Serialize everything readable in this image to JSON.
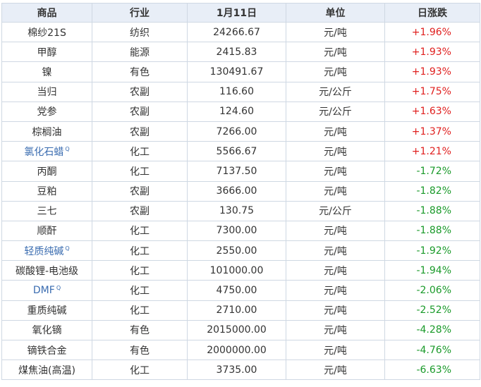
{
  "table": {
    "header": [
      "商品",
      "行业",
      "1月11日",
      "单位",
      "日涨跌"
    ],
    "rows": [
      {
        "name": "棉纱21S",
        "sector": "纺织",
        "price": "24266.67",
        "unit": "元/吨",
        "change": "+1.96%"
      },
      {
        "name": "甲醇",
        "sector": "能源",
        "price": "2415.83",
        "unit": "元/吨",
        "change": "+1.93%"
      },
      {
        "name": "镍",
        "sector": "有色",
        "price": "130491.67",
        "unit": "元/吨",
        "change": "+1.93%"
      },
      {
        "name": "当归",
        "sector": "农副",
        "price": "116.60",
        "unit": "元/公斤",
        "change": "+1.75%"
      },
      {
        "name": "党参",
        "sector": "农副",
        "price": "124.60",
        "unit": "元/公斤",
        "change": "+1.63%"
      },
      {
        "name": "棕榈油",
        "sector": "农副",
        "price": "7266.00",
        "unit": "元/吨",
        "change": "+1.37%"
      },
      {
        "name": "氯化石蜡",
        "sector": "化工",
        "price": "5566.67",
        "unit": "元/吨",
        "change": "+1.21%",
        "link": true
      },
      {
        "name": "丙酮",
        "sector": "化工",
        "price": "7137.50",
        "unit": "元/吨",
        "change": "-1.72%"
      },
      {
        "name": "豆粕",
        "sector": "农副",
        "price": "3666.00",
        "unit": "元/吨",
        "change": "-1.82%"
      },
      {
        "name": "三七",
        "sector": "农副",
        "price": "130.75",
        "unit": "元/公斤",
        "change": "-1.88%"
      },
      {
        "name": "顺酐",
        "sector": "化工",
        "price": "7300.00",
        "unit": "元/吨",
        "change": "-1.88%"
      },
      {
        "name": "轻质纯碱",
        "sector": "化工",
        "price": "2550.00",
        "unit": "元/吨",
        "change": "-1.92%",
        "link": true
      },
      {
        "name": "碳酸锂-电池级",
        "sector": "化工",
        "price": "101000.00",
        "unit": "元/吨",
        "change": "-1.94%"
      },
      {
        "name": "DMF",
        "sector": "化工",
        "price": "4750.00",
        "unit": "元/吨",
        "change": "-2.06%",
        "link": true
      },
      {
        "name": "重质纯碱",
        "sector": "化工",
        "price": "2710.00",
        "unit": "元/吨",
        "change": "-2.52%"
      },
      {
        "name": "氧化镝",
        "sector": "有色",
        "price": "2015000.00",
        "unit": "元/吨",
        "change": "-4.28%"
      },
      {
        "name": "镝铁合金",
        "sector": "有色",
        "price": "2000000.00",
        "unit": "元/吨",
        "change": "-4.76%"
      },
      {
        "name": "煤焦油(高温)",
        "sector": "化工",
        "price": "3735.00",
        "unit": "元/吨",
        "change": "-6.63%"
      }
    ]
  }
}
